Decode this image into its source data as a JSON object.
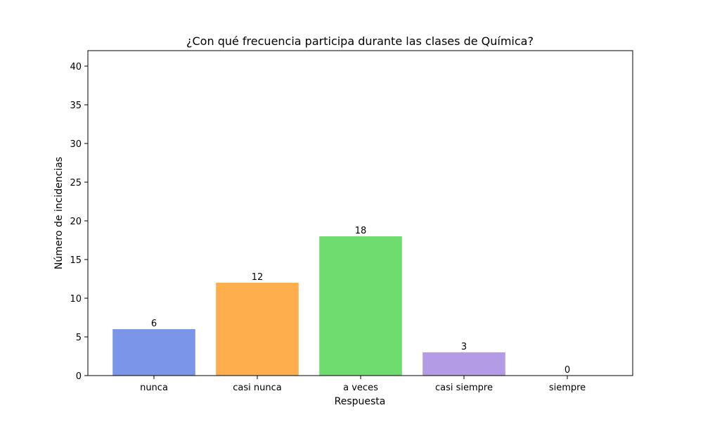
{
  "chart_data": {
    "type": "bar",
    "title": "¿Con qué frecuencia participa durante las clases de Química?",
    "xlabel": "Respuesta",
    "ylabel": "Número de incidencias",
    "categories": [
      "nunca",
      "casi nunca",
      "a veces",
      "casi siempre",
      "siempre"
    ],
    "values": [
      6,
      12,
      18,
      3,
      0
    ],
    "value_labels": [
      "6",
      "12",
      "18",
      "3",
      "0"
    ],
    "colors": [
      "#7b96e8",
      "#ffae4d",
      "#6fdc6f",
      "#b39be6",
      "#f08080"
    ],
    "ylim": [
      0,
      42
    ],
    "yticks": [
      0,
      5,
      10,
      15,
      20,
      25,
      30,
      35,
      40
    ],
    "grid": false,
    "legend": "none"
  }
}
